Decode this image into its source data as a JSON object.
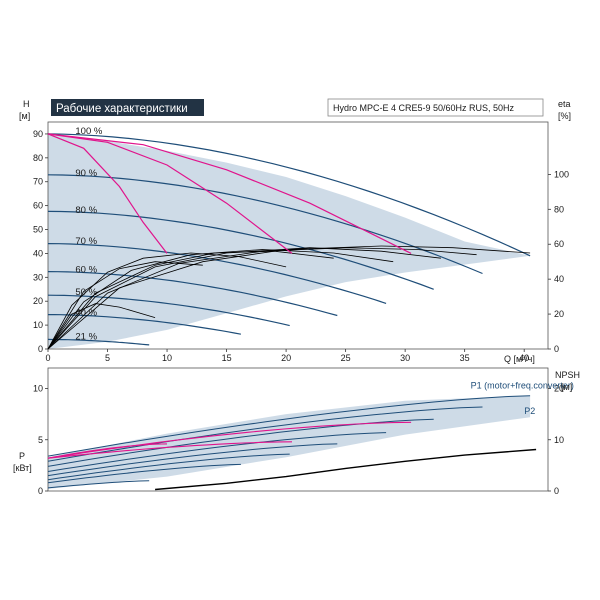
{
  "title": "Рабочие характеристики",
  "pump_label": "Hydro MPC-E 4 CRE5-9 50/60Hz RUS, 50Hz",
  "colors": {
    "envelope": "#c5d5e3",
    "curve": "#1f4e79",
    "magenta": "#e0148c",
    "black": "#000000",
    "title_bg": "#223344"
  },
  "chart_data": [
    {
      "type": "line",
      "name": "head",
      "ylabel_top": "H",
      "ylabel_unit": "[м]",
      "y2label_top": "eta",
      "y2label_unit": "[%]",
      "xlabel": "Q [м³/ч]",
      "xlim": [
        0,
        42
      ],
      "ylim": [
        0,
        95
      ],
      "y2lim": [
        0,
        130
      ],
      "xticks": [
        0,
        5,
        10,
        15,
        20,
        25,
        30,
        35,
        40
      ],
      "yticks": [
        0,
        10,
        20,
        30,
        40,
        50,
        60,
        70,
        80,
        90
      ],
      "y2ticks": [
        0,
        20,
        40,
        60,
        80,
        100
      ],
      "speed_labels": [
        {
          "text": "100 %",
          "q": 2.3,
          "h": 90
        },
        {
          "text": "90 %",
          "q": 2.3,
          "h": 72.5
        },
        {
          "text": "80 %",
          "q": 2.3,
          "h": 57
        },
        {
          "text": "70 %",
          "q": 2.3,
          "h": 44
        },
        {
          "text": "60 %",
          "q": 2.3,
          "h": 32
        },
        {
          "text": "50 %",
          "q": 2.3,
          "h": 22.5
        },
        {
          "text": "40 %",
          "q": 2.3,
          "h": 14
        },
        {
          "text": "21 %",
          "q": 2.3,
          "h": 4
        }
      ],
      "envelope": {
        "upper_q": [
          0,
          5,
          10,
          15,
          20,
          25,
          30,
          35,
          40.5
        ],
        "upper_h": [
          90,
          87,
          83,
          78,
          72,
          64,
          55,
          45,
          39
        ],
        "lower_q": [
          40.5,
          36,
          30,
          25,
          20,
          15,
          10,
          5,
          0
        ],
        "lower_h": [
          39,
          36,
          32,
          28,
          22,
          15,
          8,
          3,
          0
        ]
      },
      "qh_curves": [
        {
          "speed": 1.0,
          "h0": 90,
          "qmax": 40.5,
          "hend": 39
        },
        {
          "speed": 0.9,
          "h0": 72.9,
          "qmax": 36.5,
          "hend": 31.6
        },
        {
          "speed": 0.8,
          "h0": 57.6,
          "qmax": 32.4,
          "hend": 25
        },
        {
          "speed": 0.7,
          "h0": 44.1,
          "qmax": 28.4,
          "hend": 19.1
        },
        {
          "speed": 0.6,
          "h0": 32.4,
          "qmax": 24.3,
          "hend": 14
        },
        {
          "speed": 0.5,
          "h0": 22.5,
          "qmax": 20.3,
          "hend": 9.8
        },
        {
          "speed": 0.4,
          "h0": 14.4,
          "qmax": 16.2,
          "hend": 6.2
        },
        {
          "speed": 0.21,
          "h0": 4,
          "qmax": 8.5,
          "hend": 1.7
        }
      ],
      "magenta_curves": [
        {
          "q": [
            0,
            3,
            6,
            8,
            10
          ],
          "h": [
            90,
            84,
            68,
            53,
            40
          ]
        },
        {
          "q": [
            0,
            5,
            10,
            15,
            20.5
          ],
          "h": [
            90,
            86.5,
            77,
            61,
            40
          ]
        },
        {
          "q": [
            0,
            8,
            15,
            22,
            30.5
          ],
          "h": [
            90,
            85.5,
            75,
            61,
            40
          ]
        }
      ],
      "eff_curves": [
        {
          "q": [
            0,
            2,
            5,
            8,
            12,
            16,
            20
          ],
          "eta": [
            0,
            25,
            44,
            52,
            55,
            53,
            47
          ]
        },
        {
          "q": [
            0,
            3,
            7,
            12,
            18,
            24,
            29
          ],
          "eta": [
            0,
            27,
            45,
            54,
            57,
            55,
            50
          ]
        },
        {
          "q": [
            0,
            4,
            9,
            15,
            22,
            28,
            33
          ],
          "eta": [
            0,
            30,
            47,
            55,
            58,
            56,
            52
          ]
        },
        {
          "q": [
            0,
            5,
            11,
            18,
            25,
            31,
            36
          ],
          "eta": [
            0,
            32,
            49,
            56,
            58,
            57,
            54
          ]
        },
        {
          "q": [
            0,
            6,
            13,
            20,
            28,
            34,
            40.5
          ],
          "eta": [
            0,
            35,
            50,
            57,
            59,
            58,
            55
          ]
        },
        {
          "q": [
            0,
            4,
            9,
            14,
            19,
            24
          ],
          "eta": [
            0,
            32,
            48,
            55,
            56,
            52
          ]
        },
        {
          "q": [
            0,
            3,
            6,
            9,
            13
          ],
          "eta": [
            0,
            33,
            46,
            50,
            48
          ]
        },
        {
          "q": [
            0,
            2,
            4,
            6,
            9
          ],
          "eta": [
            0,
            20,
            26,
            24,
            18
          ]
        }
      ]
    },
    {
      "type": "line",
      "name": "power",
      "ylabel_top": "P",
      "ylabel_unit": "[кВт]",
      "y2label_top": "NPSH",
      "y2label_unit": "[м]",
      "xlim": [
        0,
        42
      ],
      "ylim": [
        0,
        12
      ],
      "y2lim": [
        0,
        24
      ],
      "yticks": [
        0,
        5,
        10
      ],
      "y2ticks": [
        0,
        10,
        20
      ],
      "series_labels": [
        {
          "text": "P1 (motor+freq.converter)",
          "q": 35.5,
          "p": 10
        },
        {
          "text": "P2",
          "q": 40,
          "p": 7.5
        }
      ],
      "envelope": {
        "upper_q": [
          0,
          10,
          20,
          30,
          40.5
        ],
        "upper_p": [
          3.3,
          5.6,
          7.5,
          8.8,
          9.3
        ],
        "lower_q": [
          40.5,
          30,
          20,
          10,
          0
        ],
        "lower_p": [
          7.2,
          5.5,
          3.3,
          1.4,
          0.2
        ]
      },
      "power_curves": [
        {
          "q": [
            0,
            40.5
          ],
          "p": [
            3.4,
            9.3
          ]
        },
        {
          "q": [
            0,
            36.5
          ],
          "p": [
            2.9,
            8.2
          ]
        },
        {
          "q": [
            0,
            32.4
          ],
          "p": [
            2.4,
            7.0
          ]
        },
        {
          "q": [
            0,
            28.4
          ],
          "p": [
            1.9,
            5.7
          ]
        },
        {
          "q": [
            0,
            24.3
          ],
          "p": [
            1.5,
            4.6
          ]
        },
        {
          "q": [
            0,
            20.3
          ],
          "p": [
            1.1,
            3.6
          ]
        },
        {
          "q": [
            0,
            16.2
          ],
          "p": [
            0.8,
            2.6
          ]
        },
        {
          "q": [
            0,
            8.5
          ],
          "p": [
            0.3,
            1.0
          ]
        }
      ],
      "magenta_curves": [
        {
          "q": [
            0,
            10
          ],
          "p": [
            3.2,
            4.6
          ]
        },
        {
          "q": [
            0,
            20.5
          ],
          "p": [
            3.2,
            4.8
          ]
        },
        {
          "q": [
            0,
            30.5
          ],
          "p": [
            3.2,
            6.7
          ]
        }
      ],
      "npsh_curve": {
        "q": [
          9,
          15,
          20,
          25,
          30,
          35,
          41
        ],
        "npsh": [
          0.3,
          1.5,
          2.8,
          4.4,
          5.8,
          7.0,
          8.1
        ]
      }
    }
  ]
}
